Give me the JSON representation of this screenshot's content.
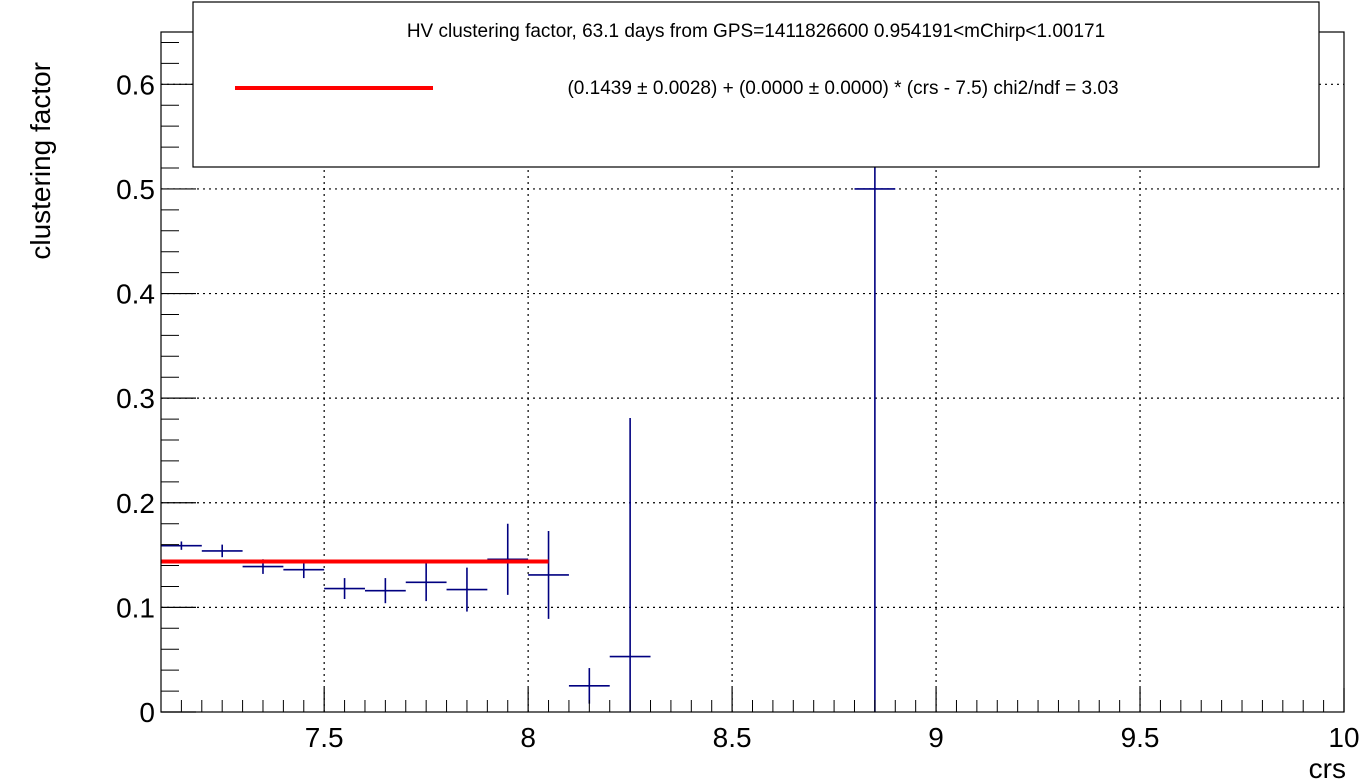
{
  "chart_data": {
    "type": "scatter",
    "xlabel": "crs",
    "ylabel": "clustering factor",
    "xlim": [
      7.1,
      10.0
    ],
    "ylim": [
      0,
      0.65
    ],
    "grid": true,
    "x_ticks": [
      {
        "value": 7.5,
        "label": "7.5"
      },
      {
        "value": 8.0,
        "label": "8"
      },
      {
        "value": 8.5,
        "label": "8.5"
      },
      {
        "value": 9.0,
        "label": "9"
      },
      {
        "value": 9.5,
        "label": "9.5"
      },
      {
        "value": 10.0,
        "label": "10"
      }
    ],
    "y_ticks": [
      {
        "value": 0,
        "label": "0"
      },
      {
        "value": 0.1,
        "label": "0.1"
      },
      {
        "value": 0.2,
        "label": "0.2"
      },
      {
        "value": 0.3,
        "label": "0.3"
      },
      {
        "value": 0.4,
        "label": "0.4"
      },
      {
        "value": 0.5,
        "label": "0.5"
      },
      {
        "value": 0.6,
        "label": "0.6"
      }
    ],
    "legend": {
      "placement": "top",
      "header": "HV clustering factor, 63.1 days from GPS=1411826600 0.954191<mChirp<1.00171",
      "entry": "(0.1439 ± 0.0028) + (0.0000 ± 0.0000) * (crs - 7.5) chi2/ndf = 3.03"
    },
    "series": [
      {
        "type": "errorbar",
        "color": "#000080",
        "points": [
          {
            "x": 7.15,
            "xerr": 0.05,
            "y": 0.159,
            "yerr": 0.004
          },
          {
            "x": 7.25,
            "xerr": 0.05,
            "y": 0.154,
            "yerr": 0.006
          },
          {
            "x": 7.35,
            "xerr": 0.05,
            "y": 0.139,
            "yerr": 0.007
          },
          {
            "x": 7.45,
            "xerr": 0.05,
            "y": 0.136,
            "yerr": 0.008
          },
          {
            "x": 7.55,
            "xerr": 0.05,
            "y": 0.118,
            "yerr": 0.01
          },
          {
            "x": 7.65,
            "xerr": 0.05,
            "y": 0.116,
            "yerr": 0.012
          },
          {
            "x": 7.75,
            "xerr": 0.05,
            "y": 0.124,
            "yerr": 0.018
          },
          {
            "x": 7.85,
            "xerr": 0.05,
            "y": 0.117,
            "yerr": 0.021
          },
          {
            "x": 7.95,
            "xerr": 0.05,
            "y": 0.146,
            "yerr": 0.034
          },
          {
            "x": 8.05,
            "xerr": 0.05,
            "y": 0.131,
            "yerr": 0.042
          },
          {
            "x": 8.15,
            "xerr": 0.05,
            "y": 0.025,
            "yerr": 0.017
          },
          {
            "x": 8.25,
            "xerr": 0.05,
            "y": 0.053,
            "yerr": 0.228
          },
          {
            "x": 8.85,
            "xerr": 0.05,
            "y": 0.5,
            "yerr": 0.5
          }
        ]
      },
      {
        "type": "fit_line",
        "color": "#ff0000",
        "x_range": [
          7.1,
          8.05
        ],
        "y": 0.1439
      }
    ]
  }
}
